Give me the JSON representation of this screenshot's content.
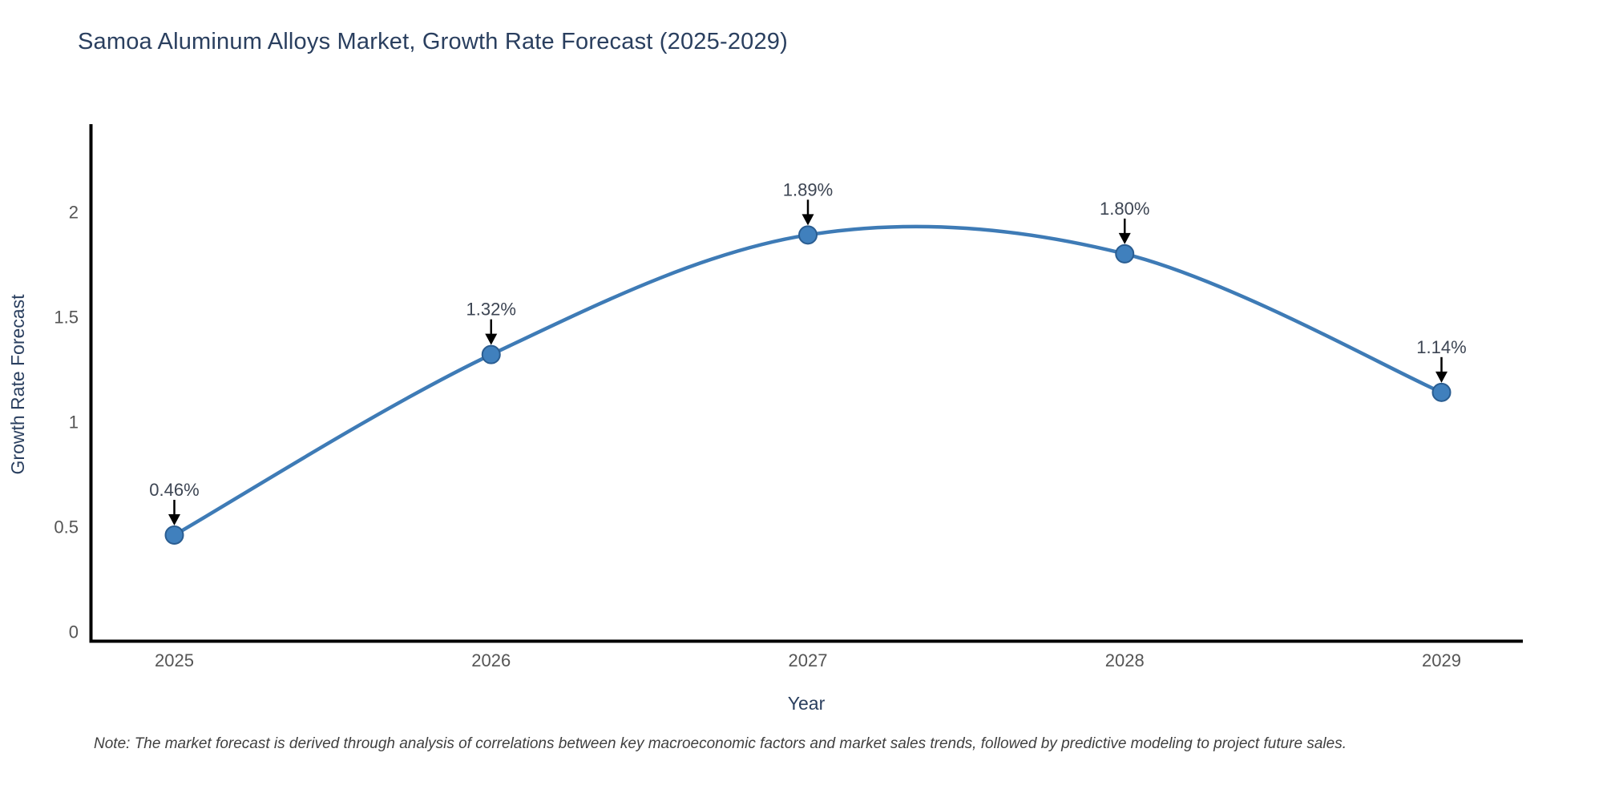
{
  "page": {
    "note": "Note: The market forecast is derived through analysis of correlations between key macroeconomic factors and market sales trends, followed by predictive modeling to project future sales."
  },
  "chart_data": {
    "type": "line",
    "title": "Samoa Aluminum Alloys Market, Growth Rate Forecast (2025-2029)",
    "x": [
      2025,
      2026,
      2027,
      2028,
      2029
    ],
    "series": [
      {
        "name": "Growth Rate Forecast",
        "values": [
          0.46,
          1.32,
          1.89,
          1.8,
          1.14
        ]
      }
    ],
    "point_labels": [
      "0.46%",
      "1.32%",
      "1.89%",
      "1.80%",
      "1.14%"
    ],
    "xlabel": "Year",
    "ylabel": "Growth Rate Forecast",
    "xticks": [
      "2025",
      "2026",
      "2027",
      "2028",
      "2029"
    ],
    "yticks": [
      "0",
      "0.5",
      "1",
      "1.5",
      "2"
    ],
    "ytick_values": [
      0,
      0.5,
      1,
      1.5,
      2
    ],
    "ylim": [
      0,
      2.4
    ],
    "xlim": [
      2024.74,
      2029.26
    ],
    "grid": false,
    "legend": "none",
    "line_shape": "spline",
    "markers": true,
    "annotation_arrows": true,
    "colors": {
      "line": "#3e7bb6",
      "marker": "#4080bd",
      "marker_edge": "#2a5d91",
      "arrow": "#000000",
      "axis": "#000000",
      "tick_label": "#555555",
      "title": "#2a3f5f",
      "axis_title": "#2a3f5f",
      "annotation": "#3d4553",
      "note": "#404040"
    }
  }
}
